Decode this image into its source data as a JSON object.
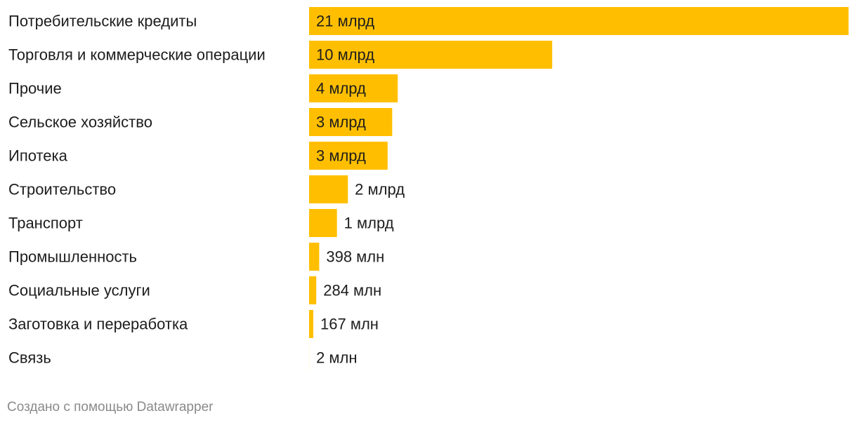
{
  "chart_data": {
    "type": "bar",
    "orientation": "horizontal",
    "title": "",
    "xlabel": "",
    "ylabel": "",
    "grid": false,
    "legend": "none",
    "bar_color": "#FFBF00",
    "categories": [
      "Потребительские кредиты",
      "Торговля и коммерческие операции",
      "Прочие",
      "Сельское хозяйство",
      "Ипотека",
      "Строительство",
      "Транспорт",
      "Промышленность",
      "Социальные услуги",
      "Заготовка и переработка",
      "Связь"
    ],
    "values": [
      21300,
      9600,
      3500,
      3280,
      3100,
      1530,
      1100,
      398,
      284,
      167,
      2
    ],
    "value_unit": "млн",
    "data_labels": [
      "21 млрд",
      "10 млрд",
      "4 млрд",
      "3 млрд",
      "3 млрд",
      "2 млрд",
      "1 млрд",
      "398 млн",
      "284 млн",
      "167 млн",
      "2 млн"
    ],
    "xlim": [
      0,
      21300
    ]
  },
  "footer": {
    "credit": "Создано с помощью Datawrapper"
  }
}
